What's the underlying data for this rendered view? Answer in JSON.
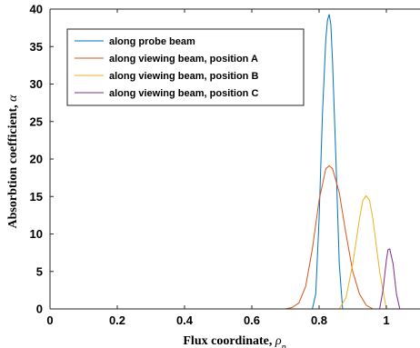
{
  "chart_data": {
    "type": "line",
    "xlabel": "Flux coordinate, ",
    "xlabel_symbol": "ρ",
    "xlabel_subscript": "p",
    "ylabel": "Absorbtion coefficient, ",
    "ylabel_symbol": "α",
    "xlim": [
      0,
      1.1
    ],
    "ylim": [
      0,
      40
    ],
    "xticks": [
      0,
      0.2,
      0.4,
      0.6,
      0.8,
      1
    ],
    "xtick_labels": [
      "0",
      "0.2",
      "0.4",
      "0.6",
      "0.8",
      "1"
    ],
    "yticks": [
      0,
      5,
      10,
      15,
      20,
      25,
      30,
      35,
      40
    ],
    "ytick_labels": [
      "0",
      "5",
      "10",
      "15",
      "20",
      "25",
      "30",
      "35",
      "40"
    ],
    "grid": false,
    "legend_position": "top-left",
    "series": [
      {
        "name": "along probe beam",
        "color": "#0072BD",
        "x": [
          0.78,
          0.79,
          0.8,
          0.81,
          0.82,
          0.825,
          0.83,
          0.835,
          0.84,
          0.85,
          0.86,
          0.87,
          1.1
        ],
        "y": [
          0,
          2,
          12,
          26,
          36,
          38.5,
          39.3,
          38,
          33,
          20,
          6,
          0,
          0
        ]
      },
      {
        "name": "along viewing beam, position A",
        "color": "#D95319",
        "x": [
          0.1,
          0.7,
          0.72,
          0.74,
          0.76,
          0.78,
          0.8,
          0.82,
          0.83,
          0.84,
          0.86,
          0.88,
          0.9,
          0.92,
          0.94,
          0.96,
          1.1
        ],
        "y": [
          0,
          0,
          0.2,
          0.8,
          3,
          8,
          14.5,
          18.7,
          19.1,
          18.7,
          15.5,
          10,
          5,
          2,
          0.5,
          0,
          0
        ]
      },
      {
        "name": "along viewing beam, position B",
        "color": "#EDB120",
        "x": [
          0.3,
          0.86,
          0.88,
          0.9,
          0.92,
          0.93,
          0.94,
          0.95,
          0.96,
          0.98,
          1.0,
          1.1
        ],
        "y": [
          0,
          0,
          1.5,
          6,
          12,
          14.5,
          15.1,
          14.5,
          12,
          5,
          0,
          0
        ]
      },
      {
        "name": "along viewing beam, position C",
        "color": "#7E2F8E",
        "x": [
          0.55,
          0.98,
          0.99,
          1.0,
          1.005,
          1.01,
          1.02,
          1.03,
          1.04,
          1.1
        ],
        "y": [
          0,
          0,
          2.5,
          6.5,
          7.9,
          8,
          6,
          2,
          0,
          0
        ]
      }
    ]
  }
}
